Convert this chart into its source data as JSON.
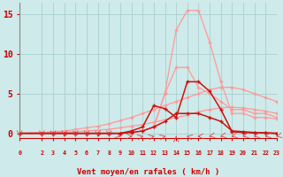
{
  "background_color": "#ceeaea",
  "grid_color": "#aacfcf",
  "xlabel": "Vent moyen/en rafales ( km/h )",
  "ylim": [
    -0.6,
    16.5
  ],
  "yticks": [
    0,
    5,
    10,
    15
  ],
  "xlim": [
    0,
    23
  ],
  "x_values": [
    0,
    2,
    3,
    4,
    5,
    6,
    7,
    8,
    9,
    10,
    11,
    12,
    13,
    14,
    15,
    16,
    17,
    18,
    19,
    20,
    21,
    22,
    23
  ],
  "line_peak_color": "#ff9999",
  "line_peak_y": [
    0,
    0,
    0,
    0,
    0,
    0,
    0,
    0,
    0,
    0.1,
    0.3,
    0.8,
    5.1,
    13.0,
    15.5,
    15.5,
    11.5,
    6.5,
    2.5,
    2.5,
    2.0,
    2.0,
    1.8
  ],
  "line_8_color": "#ff9999",
  "line_8_y": [
    0,
    0,
    0,
    0,
    0,
    0,
    0,
    0,
    0,
    0.1,
    0.3,
    0.8,
    5.0,
    8.3,
    8.3,
    5.8,
    5.0,
    4.0,
    3.0,
    3.0,
    2.5,
    2.5,
    2.0
  ],
  "line_plateau_color": "#ff9999",
  "line_plateau_y": [
    0,
    0.1,
    0.2,
    0.3,
    0.5,
    0.7,
    0.9,
    1.2,
    1.6,
    2.0,
    2.5,
    3.0,
    3.5,
    4.0,
    4.5,
    5.0,
    5.5,
    5.8,
    5.8,
    5.5,
    5.0,
    4.5,
    4.0
  ],
  "line_dark1_color": "#cc1111",
  "line_dark1_y": [
    0,
    0,
    0,
    0,
    0,
    0,
    0,
    0,
    0,
    0.3,
    0.8,
    3.5,
    3.1,
    2.0,
    6.5,
    6.5,
    5.3,
    3.0,
    0.2,
    0.1,
    0.05,
    0.05,
    0.0
  ],
  "line_dark2_color": "#cc1111",
  "line_dark2_y": [
    0,
    0,
    0,
    0,
    0,
    0,
    0,
    0,
    0,
    0.1,
    0.3,
    0.8,
    1.5,
    2.5,
    2.5,
    2.5,
    2.0,
    1.5,
    0.3,
    0.2,
    0.1,
    0.05,
    0.0
  ],
  "line_thin_color": "#ff9999",
  "line_thin_y": [
    0,
    0.05,
    0.1,
    0.15,
    0.2,
    0.3,
    0.4,
    0.5,
    0.7,
    0.9,
    1.1,
    1.4,
    1.7,
    2.0,
    2.3,
    2.7,
    3.0,
    3.2,
    3.3,
    3.2,
    3.0,
    2.8,
    2.5
  ],
  "arrow_color": "#dd4444",
  "arrow_directions": [
    0,
    0,
    0,
    0,
    0,
    0,
    0,
    0,
    45,
    90,
    135,
    135,
    135,
    180,
    225,
    270,
    315,
    315,
    315,
    315,
    315,
    315,
    315
  ],
  "marker_size": 3.5,
  "lw_light": 0.9,
  "lw_dark": 1.1
}
